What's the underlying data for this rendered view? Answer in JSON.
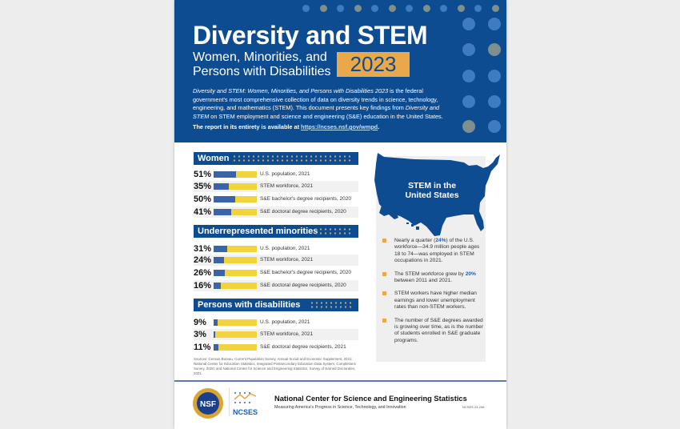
{
  "header": {
    "title": "Diversity and STEM",
    "subtitle_line1": "Women, Minorities, and",
    "subtitle_line2": "Persons with Disabilities",
    "year": "2023",
    "intro_italic1": "Diversity and STEM: Women, Minorities, and Persons with Disabilities 2023",
    "intro_text1": " is the federal government's most comprehensive collection of data on diversity trends in science, technology, engineering, and mathematics (STEM). This document presents key findings from ",
    "intro_italic2": "Diversity and STEM",
    "intro_text2": " on STEM employment and science and engineering (S&E) education in the United States.",
    "availability_text": "The report in its entirety is available at ",
    "availability_link": "https://ncses.nsf.gov/wmpd",
    "availability_end": "."
  },
  "colors": {
    "brand_blue": "#0e4c92",
    "gold": "#e9a94b",
    "bar_fill": "#3b64a8",
    "bar_rest": "#f3d33b"
  },
  "sections": [
    {
      "title": "Women",
      "rows": [
        {
          "pct": "51%",
          "value": 51,
          "label": "U.S. population, 2021"
        },
        {
          "pct": "35%",
          "value": 35,
          "label": "STEM workforce, 2021"
        },
        {
          "pct": "50%",
          "value": 50,
          "label": "S&E bachelor's degree recipients, 2020"
        },
        {
          "pct": "41%",
          "value": 41,
          "label": "S&E doctoral degree recipients, 2020"
        }
      ]
    },
    {
      "title": "Underrepresented minorities",
      "rows": [
        {
          "pct": "31%",
          "value": 31,
          "label": "U.S. population, 2021"
        },
        {
          "pct": "24%",
          "value": 24,
          "label": "STEM workforce, 2021"
        },
        {
          "pct": "26%",
          "value": 26,
          "label": "S&E bachelor's degree recipients, 2020"
        },
        {
          "pct": "16%",
          "value": 16,
          "label": "S&E doctoral degree recipients, 2020"
        }
      ]
    },
    {
      "title": "Persons with disabilities",
      "rows": [
        {
          "pct": "9%",
          "value": 9,
          "label": "U.S. population, 2021"
        },
        {
          "pct": "3%",
          "value": 3,
          "label": "STEM workforce, 2021"
        },
        {
          "pct": "11%",
          "value": 11,
          "label": "S&E doctoral degree recipients, 2021"
        }
      ]
    }
  ],
  "stem_us": {
    "title": "STEM in the United States",
    "bullets": [
      {
        "pre": "Nearly a quarter (",
        "hl": "24%",
        "post": ") of the U.S. workforce—34.9 million people ages 18 to 74—was employed in STEM occupations in 2021."
      },
      {
        "pre": "The STEM workforce grew by ",
        "hl": "20%",
        "post": " between 2011 and 2021."
      },
      {
        "pre": "STEM workers have higher median earnings and lower unemployment rates than non-STEM workers.",
        "hl": "",
        "post": ""
      },
      {
        "pre": "The number of S&E degrees awarded is growing over time, as is the number of students enrolled in S&E graduate programs.",
        "hl": "",
        "post": ""
      }
    ]
  },
  "sources": "Sources: Census Bureau, Current Population Survey, Annual Social and Economic Supplement, 2021; National Center for Education Statistics, Integrated Postsecondary Education Data System, Completions Survey, 2020; and National Center for Science and Engineering Statistics, Survey of Earned Doctorates, 2021.",
  "footer": {
    "logo_nsf": "NSF",
    "logo_ncses": "NCSES",
    "org_name": "National Center for Science and Engineering Statistics",
    "tagline": "Measuring America's Progress in Science, Technology, and Innovation",
    "doc_code": "NCSES 23-206"
  }
}
